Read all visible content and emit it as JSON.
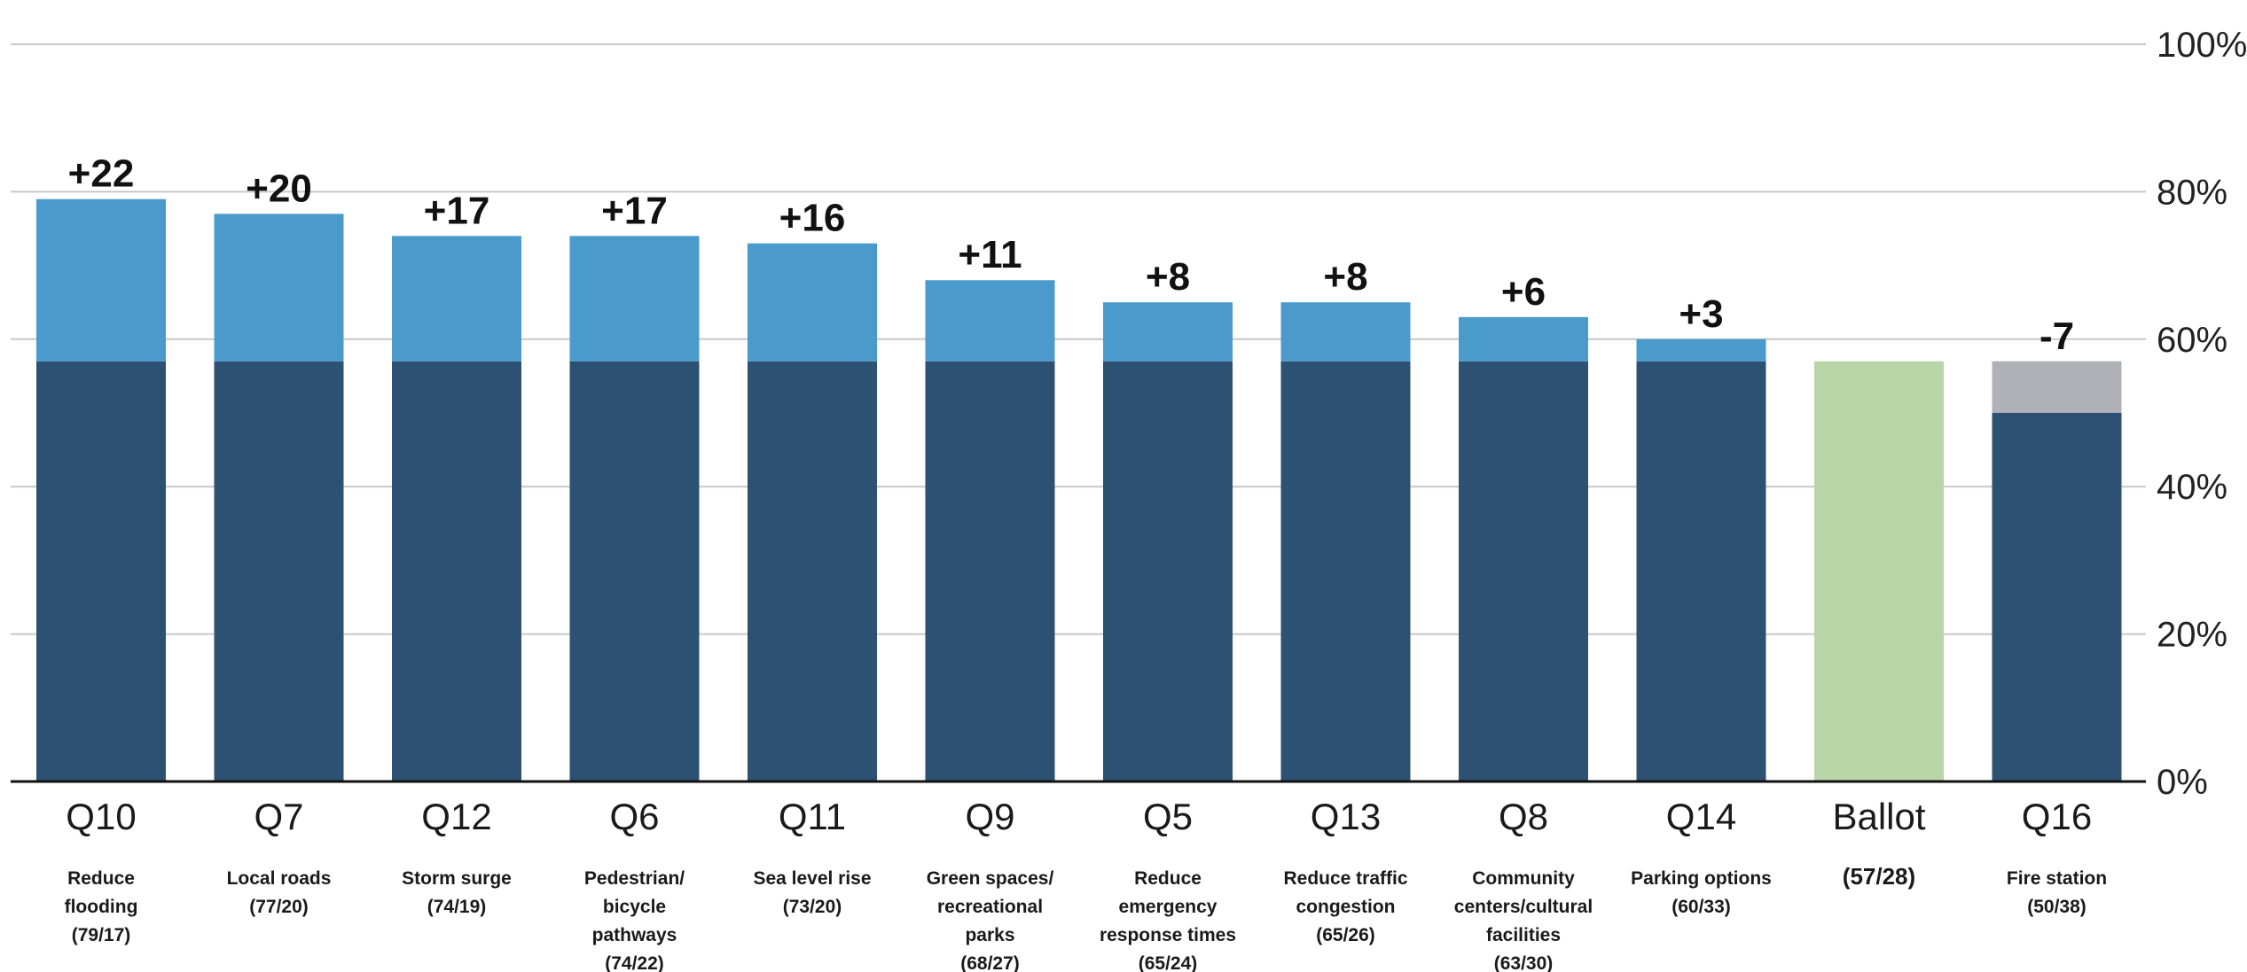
{
  "chart_data": {
    "type": "bar",
    "stacked": true,
    "y_axis": {
      "ylim": [
        0,
        100
      ],
      "ticks": [
        "0%",
        "20%",
        "40%",
        "60%",
        "80%",
        "100%"
      ],
      "tick_values": [
        0,
        20,
        40,
        60,
        80,
        100
      ],
      "position": "right",
      "grid": true
    },
    "categories": [
      {
        "code": "Q10",
        "label_lines": [
          "Reduce",
          "flooding",
          "(79/17)"
        ],
        "support": 79,
        "oppose": 17,
        "delta": "+22",
        "kind": "gain"
      },
      {
        "code": "Q7",
        "label_lines": [
          "Local roads",
          "(77/20)"
        ],
        "support": 77,
        "oppose": 20,
        "delta": "+20",
        "kind": "gain"
      },
      {
        "code": "Q12",
        "label_lines": [
          "Storm surge",
          "(74/19)"
        ],
        "support": 74,
        "oppose": 19,
        "delta": "+17",
        "kind": "gain"
      },
      {
        "code": "Q6",
        "label_lines": [
          "Pedestrian/",
          "bicycle",
          "pathways",
          "(74/22)"
        ],
        "support": 74,
        "oppose": 22,
        "delta": "+17",
        "kind": "gain"
      },
      {
        "code": "Q11",
        "label_lines": [
          "Sea level rise",
          "(73/20)"
        ],
        "support": 73,
        "oppose": 20,
        "delta": "+16",
        "kind": "gain"
      },
      {
        "code": "Q9",
        "label_lines": [
          "Green spaces/",
          "recreational",
          "parks",
          "(68/27)"
        ],
        "support": 68,
        "oppose": 27,
        "delta": "+11",
        "kind": "gain"
      },
      {
        "code": "Q5",
        "label_lines": [
          "Reduce",
          "emergency",
          "response times",
          "(65/24)"
        ],
        "support": 65,
        "oppose": 24,
        "delta": "+8",
        "kind": "gain"
      },
      {
        "code": "Q13",
        "label_lines": [
          "Reduce traffic",
          "congestion",
          "(65/26)"
        ],
        "support": 65,
        "oppose": 26,
        "delta": "+8",
        "kind": "gain"
      },
      {
        "code": "Q8",
        "label_lines": [
          "Community",
          "centers/cultural",
          "facilities",
          "(63/30)"
        ],
        "support": 63,
        "oppose": 30,
        "delta": "+6",
        "kind": "gain"
      },
      {
        "code": "Q14",
        "label_lines": [
          "Parking options",
          "(60/33)"
        ],
        "support": 60,
        "oppose": 33,
        "delta": "+3",
        "kind": "gain"
      },
      {
        "code": "Ballot",
        "label_lines": [
          "(57/28)"
        ],
        "support": 57,
        "oppose": 28,
        "delta": "",
        "kind": "ballot"
      },
      {
        "code": "Q16",
        "label_lines": [
          "Fire station",
          "(50/38)"
        ],
        "support": 50,
        "oppose": 38,
        "delta": "-7",
        "kind": "loss"
      }
    ],
    "baseline": 57,
    "colors": {
      "base": "#2d5173",
      "gain": "#4a9bcb",
      "ballot": "#b8d5a8",
      "loss": "#b0b0b7",
      "grid": "#c8c8c8",
      "axis": "#111111"
    }
  }
}
